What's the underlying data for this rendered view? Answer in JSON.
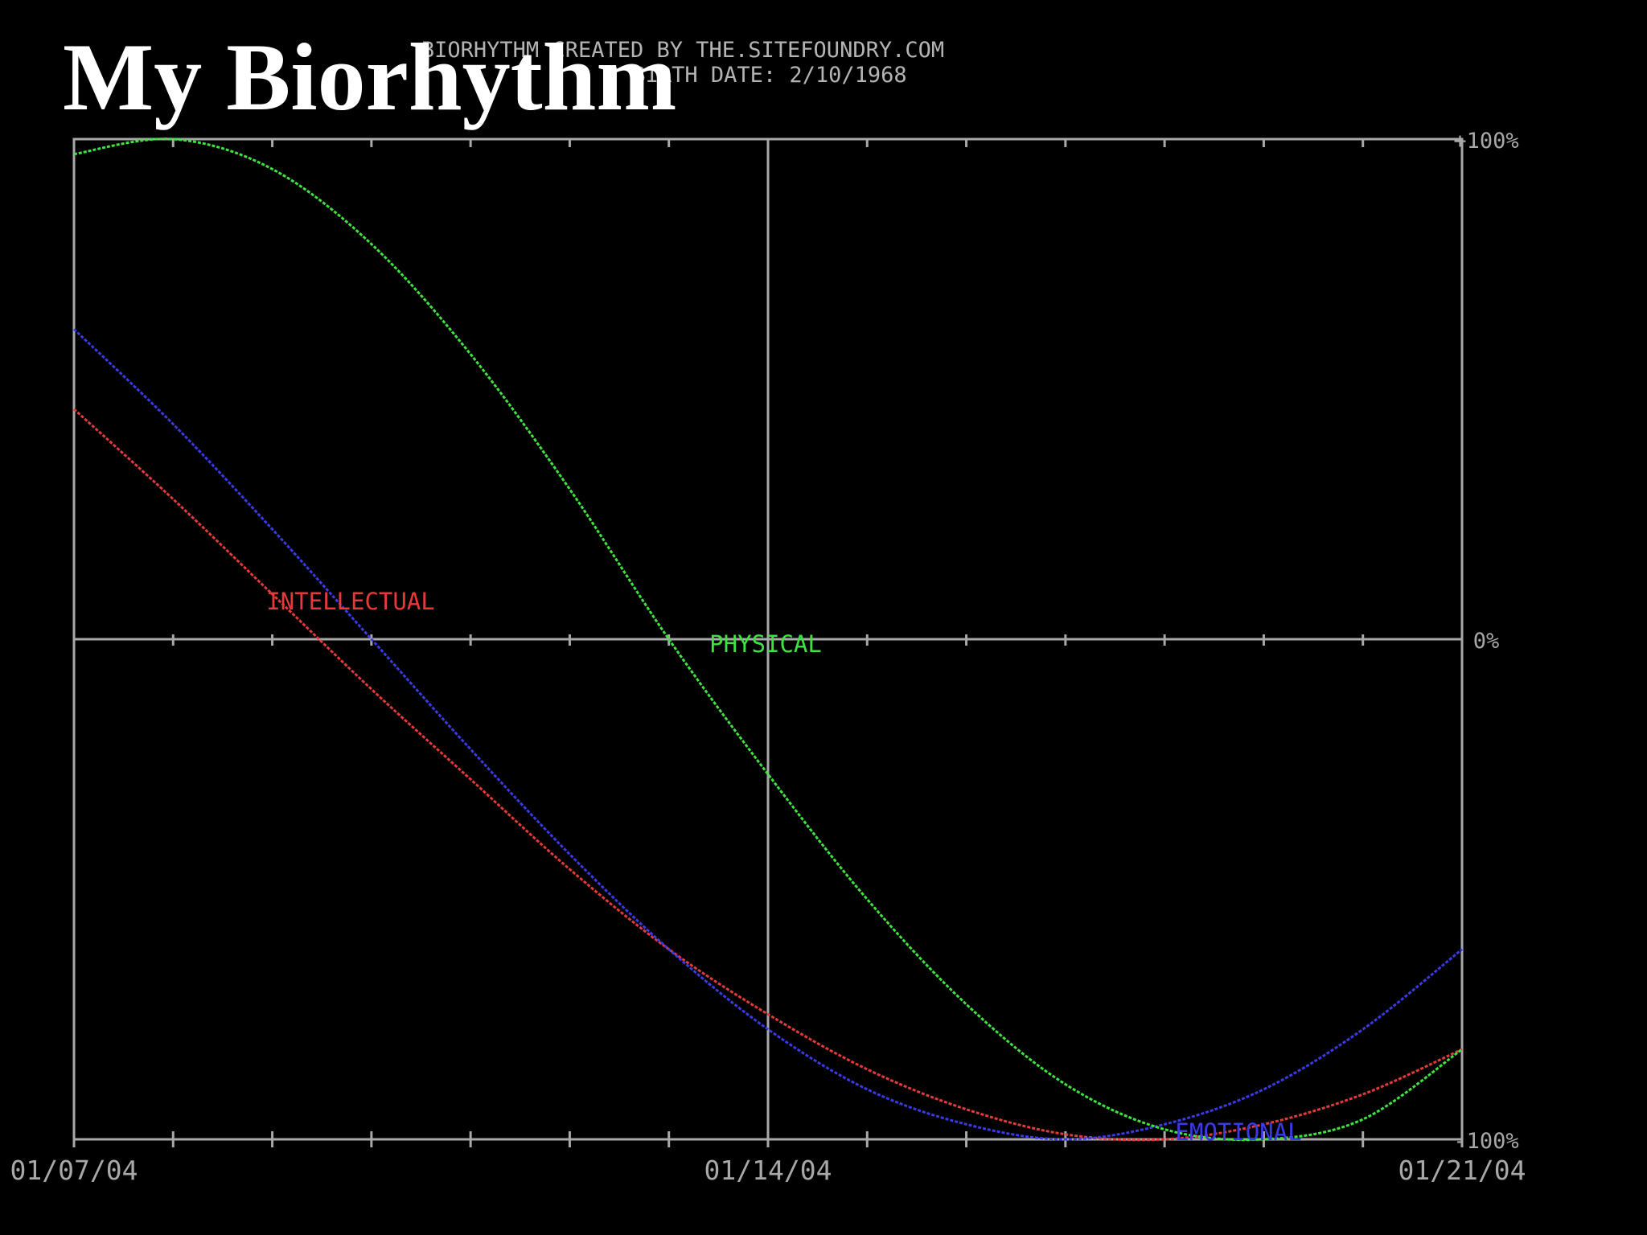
{
  "slide": {
    "title": "My Biorhythm"
  },
  "chart_data": {
    "type": "line",
    "header_line1": "BIORHYTHM CREATED BY THE.SITEFOUNDRY.COM",
    "header_line2": "BIRTH DATE: 2/10/1968",
    "x_range": [
      "2004-01-07",
      "2004-01-21"
    ],
    "x_tick_labels": [
      "01/07/04",
      "01/14/04",
      "01/21/04"
    ],
    "y_tick_labels": [
      "+100%",
      "0%",
      "-100%"
    ],
    "ylim": [
      -100,
      100
    ],
    "grid": true,
    "series": [
      {
        "name": "PHYSICAL",
        "color": "#3ee43e",
        "x": [
          "2004-01-07",
          "2004-01-08",
          "2004-01-09",
          "2004-01-10",
          "2004-01-11",
          "2004-01-12",
          "2004-01-13",
          "2004-01-14",
          "2004-01-15",
          "2004-01-16",
          "2004-01-17",
          "2004-01-18",
          "2004-01-19",
          "2004-01-20",
          "2004-01-21"
        ],
        "values": [
          97,
          100,
          94,
          79,
          57,
          30,
          0,
          -27,
          -52,
          -73,
          -89,
          -98,
          -100,
          -96,
          -82
        ]
      },
      {
        "name": "EMOTIONAL",
        "color": "#3a3ae6",
        "x": [
          "2004-01-07",
          "2004-01-08",
          "2004-01-09",
          "2004-01-10",
          "2004-01-11",
          "2004-01-12",
          "2004-01-13",
          "2004-01-14",
          "2004-01-15",
          "2004-01-16",
          "2004-01-17",
          "2004-01-18",
          "2004-01-19",
          "2004-01-20",
          "2004-01-21"
        ],
        "values": [
          62,
          43,
          22,
          0,
          -22,
          -43,
          -62,
          -78,
          -90,
          -97,
          -100,
          -97,
          -90,
          -78,
          -62
        ]
      },
      {
        "name": "INTELLECTUAL",
        "color": "#e43a3a",
        "x": [
          "2004-01-07",
          "2004-01-08",
          "2004-01-09",
          "2004-01-10",
          "2004-01-11",
          "2004-01-12",
          "2004-01-13",
          "2004-01-14",
          "2004-01-15",
          "2004-01-16",
          "2004-01-17",
          "2004-01-18",
          "2004-01-19",
          "2004-01-20",
          "2004-01-21"
        ],
        "values": [
          46,
          28,
          9,
          -10,
          -28,
          -46,
          -62,
          -75,
          -86,
          -94,
          -99,
          -100,
          -97,
          -91,
          -82
        ]
      }
    ]
  }
}
